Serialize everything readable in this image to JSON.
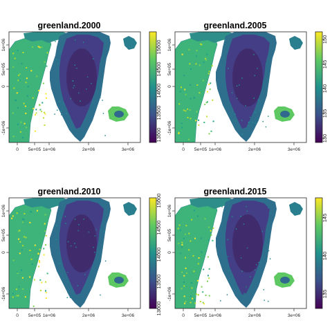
{
  "figure": {
    "panels": [
      {
        "title": "greenland.2000",
        "legend_ticks": [
          "15000",
          "14500",
          "14000",
          "13500",
          "13000"
        ]
      },
      {
        "title": "greenland.2005",
        "legend_ticks": [
          "150",
          "145",
          "140",
          "135",
          "130"
        ]
      },
      {
        "title": "greenland.2010",
        "legend_ticks": [
          "15000",
          "14500",
          "14000",
          "13500",
          "13000"
        ]
      },
      {
        "title": "greenland.2015",
        "legend_ticks": [
          "145",
          "140",
          "135"
        ]
      }
    ],
    "x_ticks": [
      "0",
      "5e+05",
      "1e+06",
      "2e+06",
      "3e+06"
    ],
    "y_ticks": [
      "1e+06",
      "5e+05",
      "0",
      "-1e+06"
    ]
  },
  "colors": {
    "ice_dark": "#3f2868",
    "ice_mid": "#433e85",
    "coast_green": "#35b779",
    "coast_teal": "#1f9e89",
    "yellow": "#fde725"
  },
  "colormap": "viridis"
}
